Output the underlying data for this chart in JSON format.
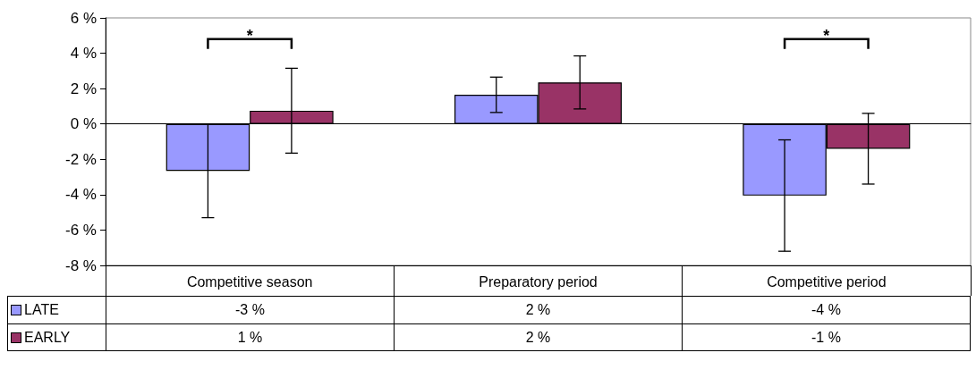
{
  "chart_data": {
    "type": "bar",
    "categories": [
      "Competitive season",
      "Preparatory period",
      "Competitive period"
    ],
    "series": [
      {
        "name": "LATE",
        "color": "#9999ff",
        "values": [
          -2.65,
          1.65,
          -4.05
        ],
        "errors": [
          2.65,
          1.0,
          3.15
        ],
        "value_labels": [
          "-3 %",
          "2 %",
          "-4 %"
        ]
      },
      {
        "name": "EARLY",
        "color": "#993366",
        "values": [
          0.75,
          2.35,
          -1.4
        ],
        "errors": [
          2.4,
          1.5,
          2.0
        ],
        "value_labels": [
          "1 %",
          "2 %",
          "-1 %"
        ]
      }
    ],
    "ylim": [
      -8,
      6
    ],
    "yticks": [
      {
        "value": -8,
        "label": "-8 %"
      },
      {
        "value": -6,
        "label": "-6 %"
      },
      {
        "value": -4,
        "label": "-4 %"
      },
      {
        "value": -2,
        "label": "-2 %"
      },
      {
        "value": 0,
        "label": "0 %"
      },
      {
        "value": 2,
        "label": "2 %"
      },
      {
        "value": 4,
        "label": "4 %"
      },
      {
        "value": 6,
        "label": "6 %"
      }
    ],
    "legend": "bottom left",
    "annotations": [
      "*",
      "*"
    ]
  }
}
